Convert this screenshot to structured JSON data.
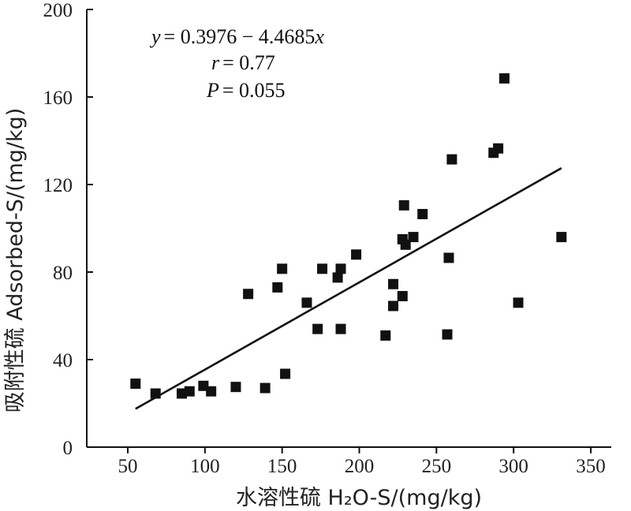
{
  "chart_data": {
    "type": "scatter",
    "xlabel": "水溶性硫 H₂O-S/(mg/kg)",
    "ylabel": "吸附性硫 Adsorbed-S/(mg/kg)",
    "xlim": [
      30,
      360
    ],
    "ylim": [
      0,
      200
    ],
    "xticks": [
      "50",
      "100",
      "150",
      "200",
      "250",
      "300",
      "350"
    ],
    "yticks": [
      "0",
      "40",
      "80",
      "120",
      "160",
      "200"
    ],
    "grid": false,
    "annotations": {
      "equation": {
        "lhs": "y",
        "rhs": "= 0.3976 − 4.4685",
        "var": "x"
      },
      "r": {
        "sym": "r",
        "rhs": "= 0.77"
      },
      "p": {
        "sym": "P",
        "rhs": "= 0.055"
      }
    },
    "fit_line": {
      "x": [
        55,
        331
      ],
      "y": [
        17.5,
        127.5
      ]
    },
    "points": [
      {
        "x": 55,
        "y": 29
      },
      {
        "x": 68,
        "y": 24.5
      },
      {
        "x": 85,
        "y": 24.5
      },
      {
        "x": 90,
        "y": 25.5
      },
      {
        "x": 99,
        "y": 28
      },
      {
        "x": 104,
        "y": 25.5
      },
      {
        "x": 120,
        "y": 27.5
      },
      {
        "x": 128,
        "y": 70
      },
      {
        "x": 139,
        "y": 27
      },
      {
        "x": 147,
        "y": 73
      },
      {
        "x": 150,
        "y": 81.5
      },
      {
        "x": 152,
        "y": 33.5
      },
      {
        "x": 166,
        "y": 66
      },
      {
        "x": 173,
        "y": 54
      },
      {
        "x": 176,
        "y": 81.5
      },
      {
        "x": 186,
        "y": 77.5
      },
      {
        "x": 188,
        "y": 81.5
      },
      {
        "x": 188,
        "y": 54
      },
      {
        "x": 198,
        "y": 88
      },
      {
        "x": 217,
        "y": 51
      },
      {
        "x": 222,
        "y": 74.5
      },
      {
        "x": 222,
        "y": 64.5
      },
      {
        "x": 228,
        "y": 69
      },
      {
        "x": 228,
        "y": 95
      },
      {
        "x": 229,
        "y": 110.5
      },
      {
        "x": 230,
        "y": 92.5
      },
      {
        "x": 235,
        "y": 96
      },
      {
        "x": 241,
        "y": 106.5
      },
      {
        "x": 257,
        "y": 51.5
      },
      {
        "x": 258,
        "y": 86.5
      },
      {
        "x": 260,
        "y": 131.5
      },
      {
        "x": 287,
        "y": 134.5
      },
      {
        "x": 290,
        "y": 136.5
      },
      {
        "x": 294,
        "y": 168.5
      },
      {
        "x": 303,
        "y": 66
      },
      {
        "x": 331,
        "y": 96
      }
    ]
  }
}
